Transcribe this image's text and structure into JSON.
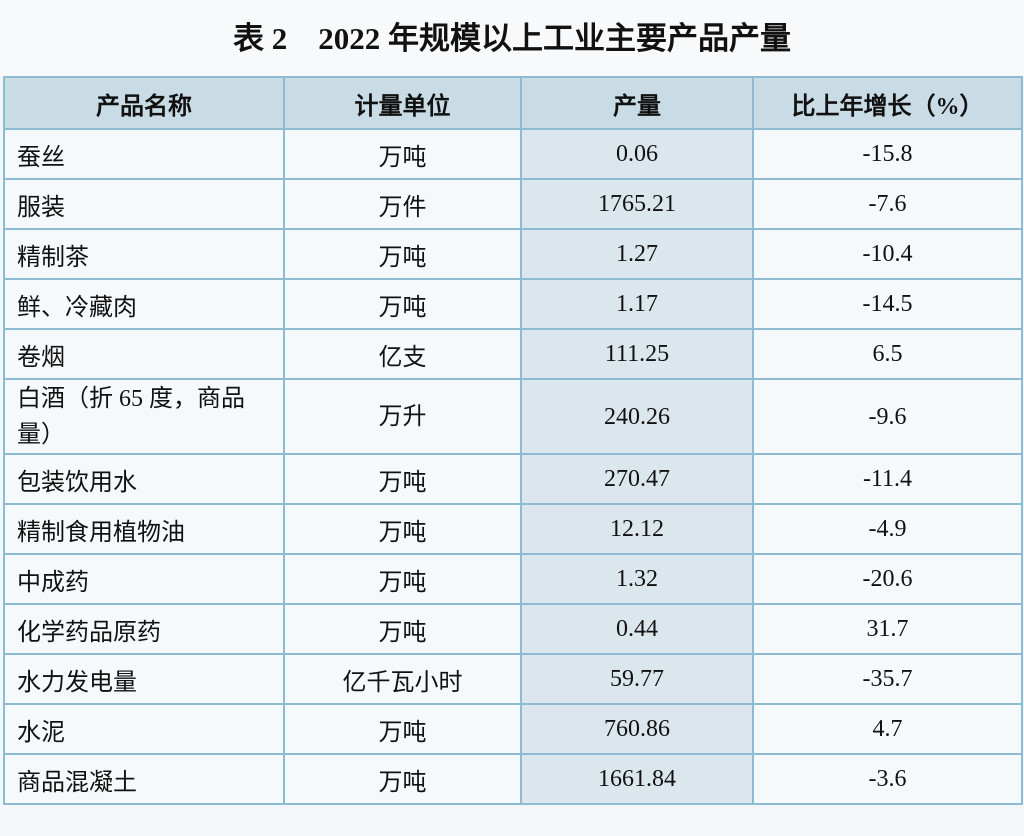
{
  "header": {
    "title": "表 2　2022 年规模以上工业主要产品产量"
  },
  "table": {
    "columns": [
      "产品名称",
      "计量单位",
      "产量",
      "比上年增长（%）"
    ],
    "rows": [
      [
        "蚕丝",
        "万吨",
        "0.06",
        "-15.8"
      ],
      [
        "服装",
        "万件",
        "1765.21",
        "-7.6"
      ],
      [
        "精制茶",
        "万吨",
        "1.27",
        "-10.4"
      ],
      [
        "鲜、冷藏肉",
        "万吨",
        "1.17",
        "-14.5"
      ],
      [
        "卷烟",
        "亿支",
        "111.25",
        "6.5"
      ],
      [
        "白酒（折 65 度，商品量）",
        "万升",
        "240.26",
        "-9.6"
      ],
      [
        "包装饮用水",
        "万吨",
        "270.47",
        "-11.4"
      ],
      [
        "精制食用植物油",
        "万吨",
        "12.12",
        "-4.9"
      ],
      [
        "中成药",
        "万吨",
        "1.32",
        "-20.6"
      ],
      [
        "化学药品原药",
        "万吨",
        "0.44",
        "31.7"
      ],
      [
        "水力发电量",
        "亿千瓦小时",
        "59.77",
        "-35.7"
      ],
      [
        "水泥",
        "万吨",
        "760.86",
        "4.7"
      ],
      [
        "商品混凝土",
        "万吨",
        "1661.84",
        "-3.6"
      ]
    ]
  }
}
